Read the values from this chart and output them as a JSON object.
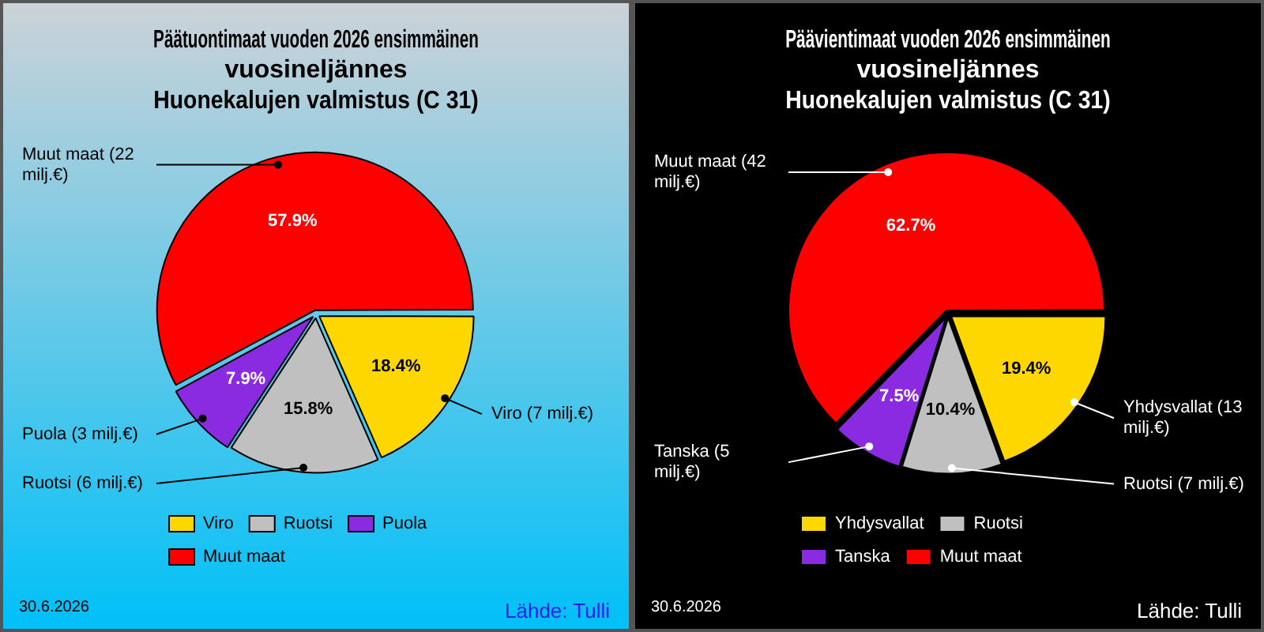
{
  "chart_data": [
    {
      "type": "pie",
      "title": "Päätuontimaat vuoden 2026 ensimmäinen vuosineljännes",
      "subtitle": "Huonekalujen valmistus (C 31)",
      "categories": [
        "Viro",
        "Ruotsi",
        "Puola",
        "Muut maat"
      ],
      "values": [
        18.4,
        15.8,
        7.9,
        57.9
      ],
      "value_labels": [
        "18.4%",
        "15.8%",
        "7.9%",
        "57.9%"
      ],
      "colors": [
        "#ffd700",
        "#c0c0c0",
        "#8a2be2",
        "#ff0000"
      ],
      "legend": "bottom left",
      "annotations": [
        {
          "text": "Viro (7 milj.€)",
          "x": "Viro"
        },
        {
          "text": "Ruotsi (6 milj.€)",
          "x": "Ruotsi"
        },
        {
          "text": "Puola (3 milj.€)",
          "x": "Puola"
        },
        {
          "text": "Muut maat (22 milj.€)",
          "x": "Muut maat"
        },
        "30.6.2026",
        "Lähde: Tulli"
      ]
    },
    {
      "type": "pie",
      "title": "Päävientimaat vuoden 2026 ensimmäinen vuosineljännes",
      "subtitle": "Huonekalujen valmistus (C 31)",
      "categories": [
        "Yhdysvallat",
        "Ruotsi",
        "Tanska",
        "Muut maat"
      ],
      "values": [
        19.4,
        10.4,
        7.5,
        62.7
      ],
      "value_labels": [
        "19.4%",
        "10.4%",
        "7.5%",
        "62.7%"
      ],
      "colors": [
        "#ffd700",
        "#c0c0c0",
        "#8a2be2",
        "#ff0000"
      ],
      "legend": "bottom left",
      "annotations": [
        {
          "text": "Yhdysvallat (13 milj.€)",
          "x": "Yhdysvallat"
        },
        {
          "text": "Ruotsi (7 milj.€)",
          "x": "Ruotsi"
        },
        {
          "text": "Tanska (5 milj.€)",
          "x": "Tanska"
        },
        {
          "text": "Muut maat (42 milj.€)",
          "x": "Muut maat"
        },
        "30.6.2026",
        "Lähde: Tulli"
      ]
    }
  ]
}
